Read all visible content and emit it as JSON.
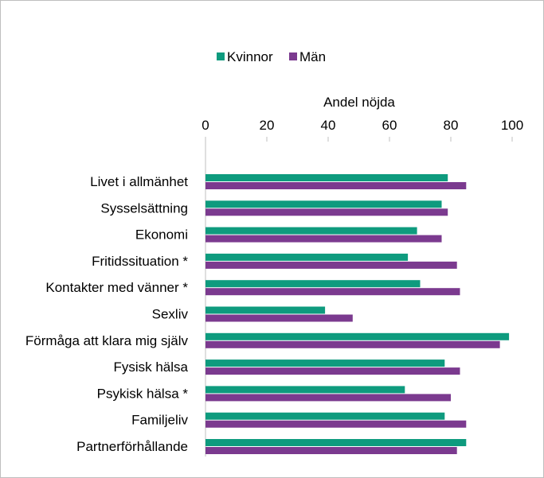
{
  "chart_data": {
    "type": "bar",
    "orientation": "horizontal",
    "title": "",
    "xlabel": "Andel nöjda",
    "ylabel": "",
    "xlim": [
      0,
      100
    ],
    "xticks": [
      "0",
      "20",
      "40",
      "60",
      "80",
      "100"
    ],
    "x_axis_position": "top",
    "grid": false,
    "legend_position": "top",
    "categories": [
      "Livet i allmänhet",
      "Sysselsättning",
      "Ekonomi",
      "Fritidssituation *",
      "Kontakter med vänner *",
      "Sexliv",
      "Förmåga att klara mig själv",
      "Fysisk hälsa",
      "Psykisk hälsa *",
      "Familjeliv",
      "Partnerförhållande"
    ],
    "series": [
      {
        "name": "Kvinnor",
        "color": "#0e9b7e",
        "values": [
          79,
          77,
          69,
          66,
          70,
          39,
          99,
          78,
          65,
          78,
          85
        ]
      },
      {
        "name": "Män",
        "color": "#7b3a8f",
        "values": [
          85,
          79,
          77,
          82,
          83,
          48,
          96,
          83,
          80,
          85,
          82
        ]
      }
    ]
  }
}
